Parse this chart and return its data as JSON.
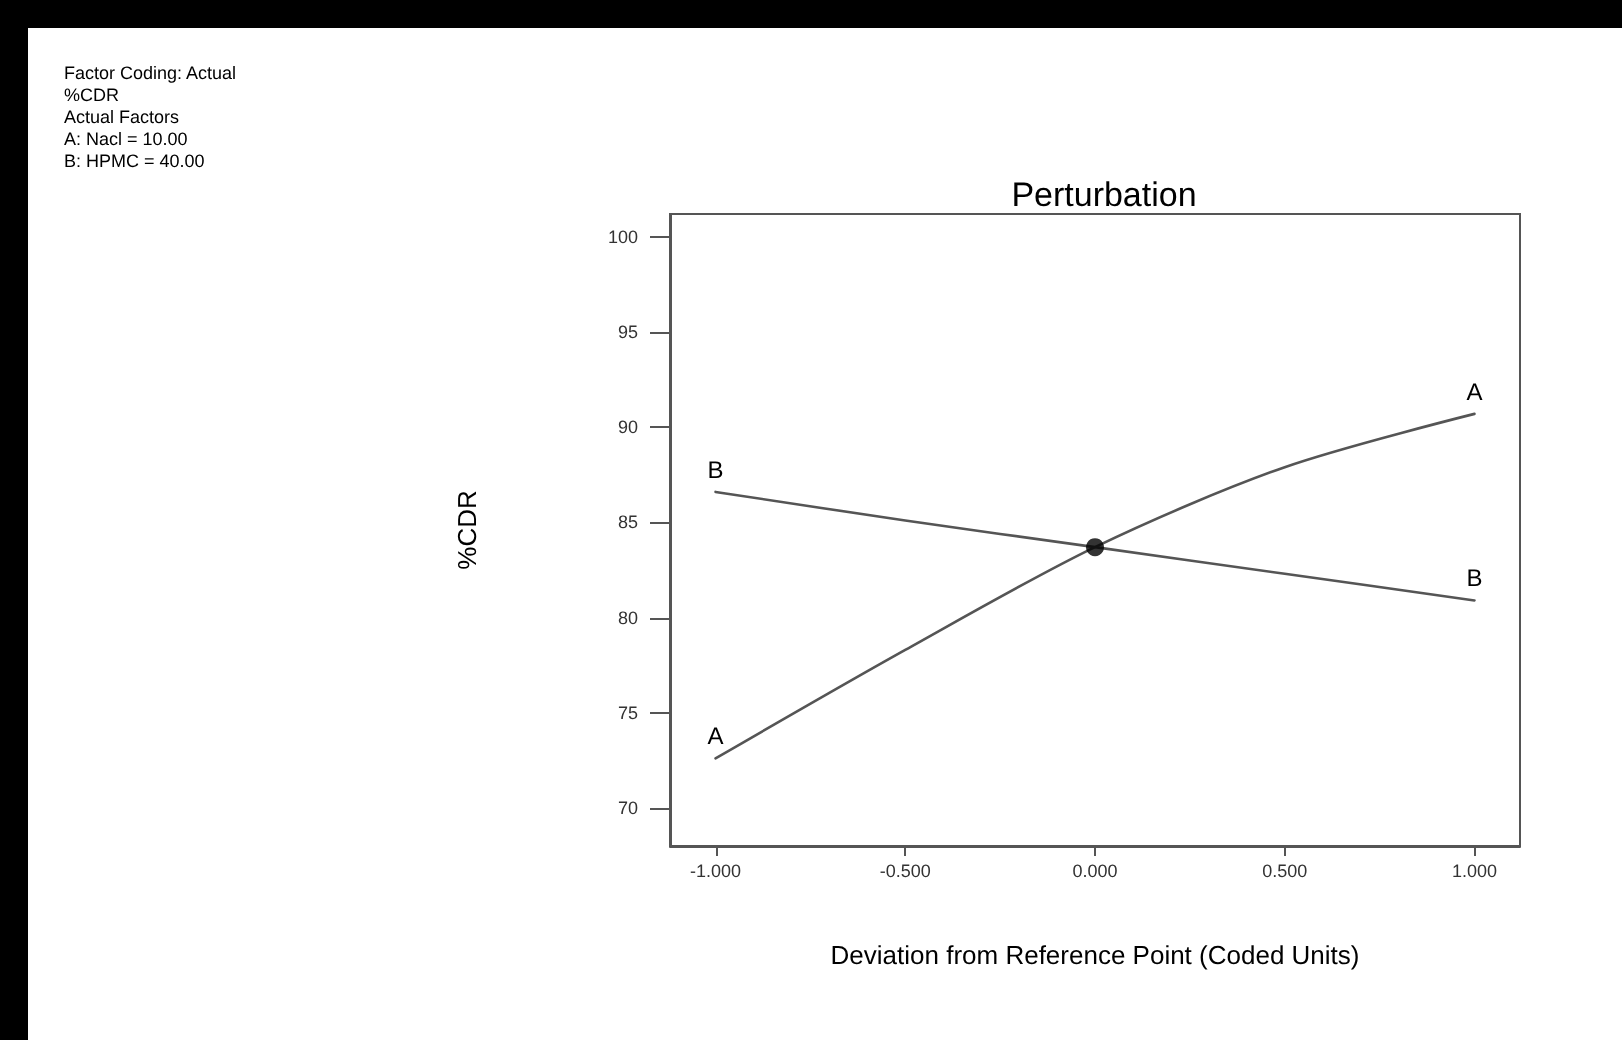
{
  "chart_data": {
    "type": "line",
    "title": "Perturbation",
    "xlabel": "Deviation from Reference Point (Coded Units)",
    "ylabel": "%CDR",
    "annotations": [
      "Factor Coding: Actual",
      "%CDR",
      "Actual Factors",
      "A: Nacl = 10.00",
      "B: HPMC = 40.00"
    ],
    "x": [
      -1,
      -0.5,
      0,
      0.5,
      1
    ],
    "series": [
      {
        "name": "A",
        "color": "#555555",
        "values": [
          72.6,
          78.3,
          83.7,
          87.9,
          90.7
        ]
      },
      {
        "name": "B",
        "color": "#555555",
        "values": [
          86.6,
          85.1,
          83.7,
          82.3,
          80.9
        ]
      },
      {
        "type": "scatter",
        "color": "#000000",
        "marker": "circle",
        "x": [
          0
        ],
        "values": [
          83.7
        ]
      }
    ],
    "xlim": [
      -1.12,
      1.12
    ],
    "xticks": [
      {
        "value": -1,
        "label": "-1.000"
      },
      {
        "value": -0.5,
        "label": "-0.500"
      },
      {
        "value": 0,
        "label": "0.000"
      },
      {
        "value": 0.5,
        "label": "0.500"
      },
      {
        "value": 1,
        "label": "1.000"
      }
    ],
    "ylim": [
      68,
      101.2
    ],
    "yticks": [
      70,
      75,
      80,
      85,
      90,
      95,
      100
    ],
    "grid": false,
    "legend": false,
    "marker": "none",
    "line_style": "solid"
  }
}
